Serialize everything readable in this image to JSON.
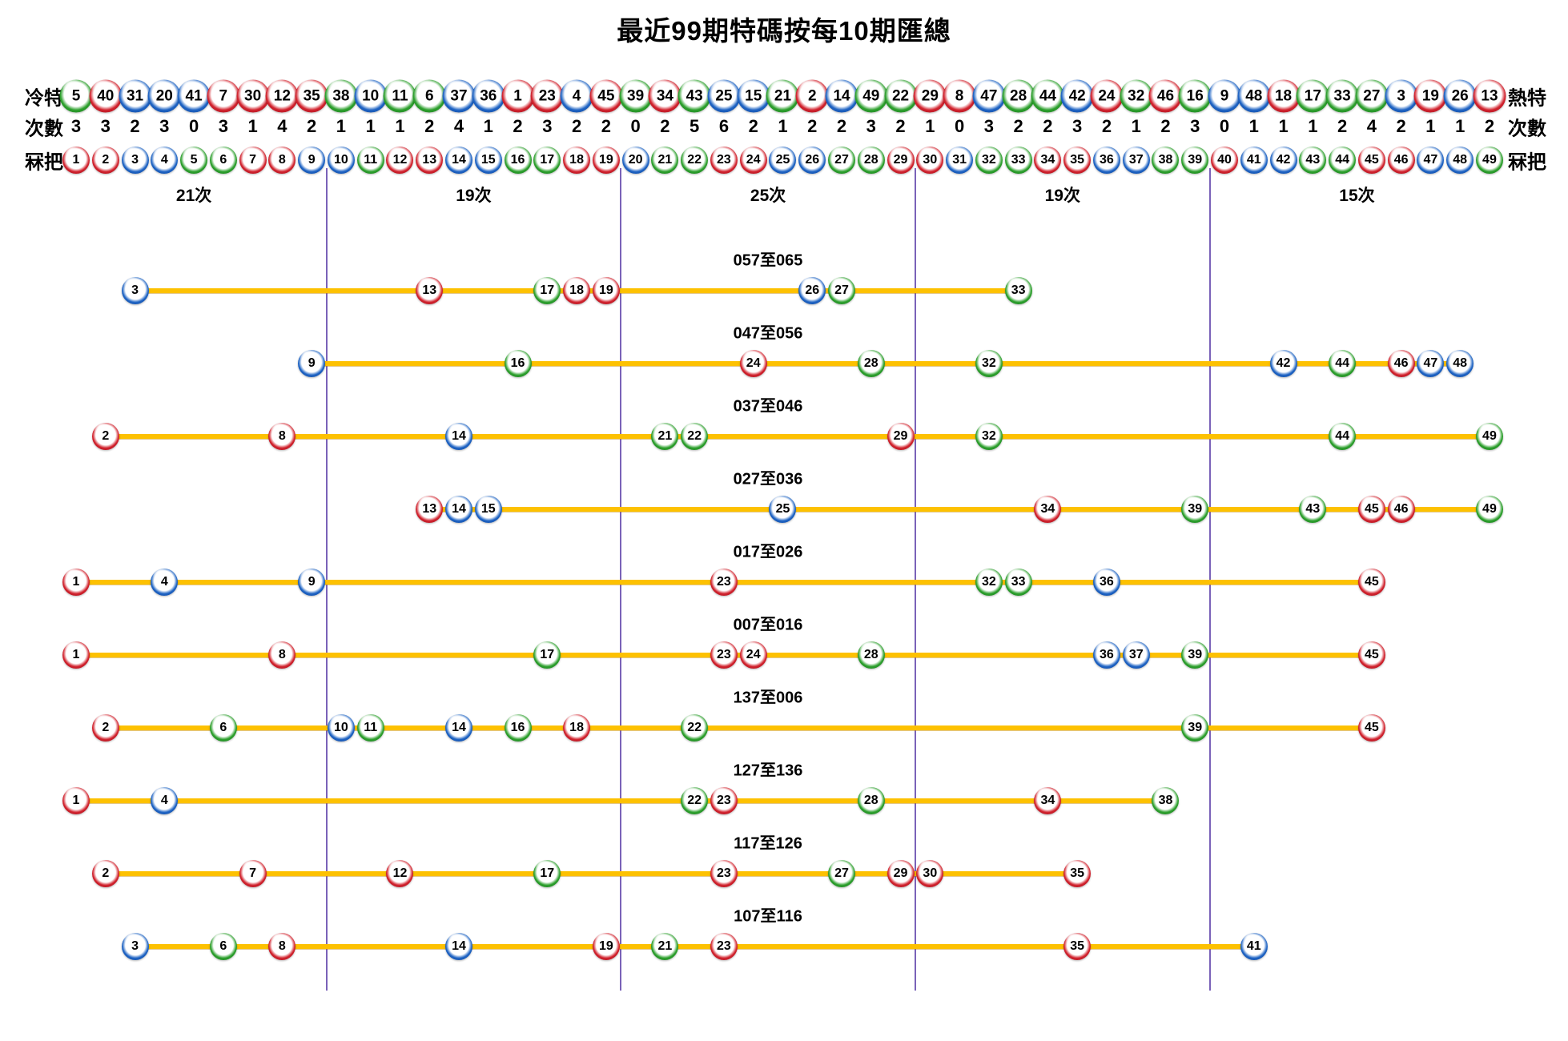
{
  "chart_data": {
    "type": "scatter",
    "title": "最近99期特碼按每10期匯總",
    "header_labels": {
      "cold": "冷特",
      "hot": "熱特",
      "count": "次數",
      "number": "冧把"
    },
    "cold_to_hot_order": [
      5,
      40,
      31,
      20,
      41,
      7,
      30,
      12,
      35,
      38,
      10,
      11,
      6,
      37,
      36,
      1,
      23,
      4,
      45,
      39,
      34,
      43,
      25,
      15,
      21,
      2,
      14,
      49,
      22,
      29,
      8,
      47,
      28,
      44,
      42,
      24,
      32,
      46,
      16,
      9,
      48,
      18,
      17,
      33,
      27,
      3,
      19,
      26,
      13
    ],
    "counts_by_number": [
      3,
      3,
      2,
      3,
      0,
      3,
      1,
      4,
      2,
      1,
      1,
      1,
      2,
      4,
      1,
      2,
      3,
      2,
      2,
      0,
      2,
      5,
      6,
      2,
      1,
      2,
      2,
      3,
      2,
      1,
      0,
      3,
      2,
      2,
      3,
      2,
      1,
      2,
      3,
      0,
      1,
      1,
      1,
      2,
      4,
      2,
      1,
      1,
      2
    ],
    "number_axis": {
      "min": 1,
      "max": 49
    },
    "sections": [
      {
        "label": "21次",
        "from": 1,
        "to": 9
      },
      {
        "label": "19次",
        "from": 10,
        "to": 19
      },
      {
        "label": "25次",
        "from": 20,
        "to": 29
      },
      {
        "label": "19次",
        "from": 30,
        "to": 39
      },
      {
        "label": "15次",
        "from": 40,
        "to": 49
      }
    ],
    "rows": [
      {
        "label": "057至065",
        "numbers": [
          3,
          13,
          17,
          18,
          19,
          26,
          27,
          33
        ]
      },
      {
        "label": "047至056",
        "numbers": [
          9,
          16,
          24,
          28,
          32,
          42,
          44,
          46,
          47,
          48
        ]
      },
      {
        "label": "037至046",
        "numbers": [
          2,
          8,
          14,
          21,
          22,
          29,
          32,
          44,
          49
        ]
      },
      {
        "label": "027至036",
        "numbers": [
          13,
          14,
          15,
          25,
          34,
          39,
          43,
          45,
          46,
          49
        ]
      },
      {
        "label": "017至026",
        "numbers": [
          1,
          4,
          9,
          23,
          32,
          33,
          36,
          45
        ]
      },
      {
        "label": "007至016",
        "numbers": [
          1,
          8,
          17,
          23,
          24,
          28,
          36,
          37,
          39,
          45
        ]
      },
      {
        "label": "137至006",
        "numbers": [
          2,
          6,
          10,
          11,
          14,
          16,
          18,
          22,
          39,
          45
        ]
      },
      {
        "label": "127至136",
        "numbers": [
          1,
          4,
          22,
          23,
          28,
          34,
          38
        ]
      },
      {
        "label": "117至126",
        "numbers": [
          2,
          7,
          12,
          17,
          23,
          27,
          29,
          30,
          35
        ]
      },
      {
        "label": "107至116",
        "numbers": [
          3,
          6,
          8,
          14,
          19,
          21,
          23,
          35,
          41
        ]
      }
    ],
    "ball_colors": {
      "red": [
        1,
        2,
        7,
        8,
        12,
        13,
        18,
        19,
        23,
        24,
        29,
        30,
        34,
        35,
        40,
        45,
        46
      ],
      "blue": [
        3,
        4,
        9,
        10,
        14,
        15,
        20,
        25,
        26,
        31,
        36,
        37,
        41,
        42,
        47,
        48
      ],
      "green": [
        5,
        6,
        11,
        16,
        17,
        21,
        22,
        27,
        28,
        32,
        33,
        38,
        39,
        43,
        44,
        49
      ]
    },
    "palette": {
      "red": "#d2232e",
      "red_dark": "#8e0d1b",
      "blue": "#1f64c4",
      "blue_dark": "#0c3c8e",
      "green": "#2da02d",
      "green_dark": "#156f1c",
      "connector_line": "#fdc101",
      "divider_line": "#7a62b8",
      "text": "#000000",
      "background": "#ffffff"
    }
  }
}
